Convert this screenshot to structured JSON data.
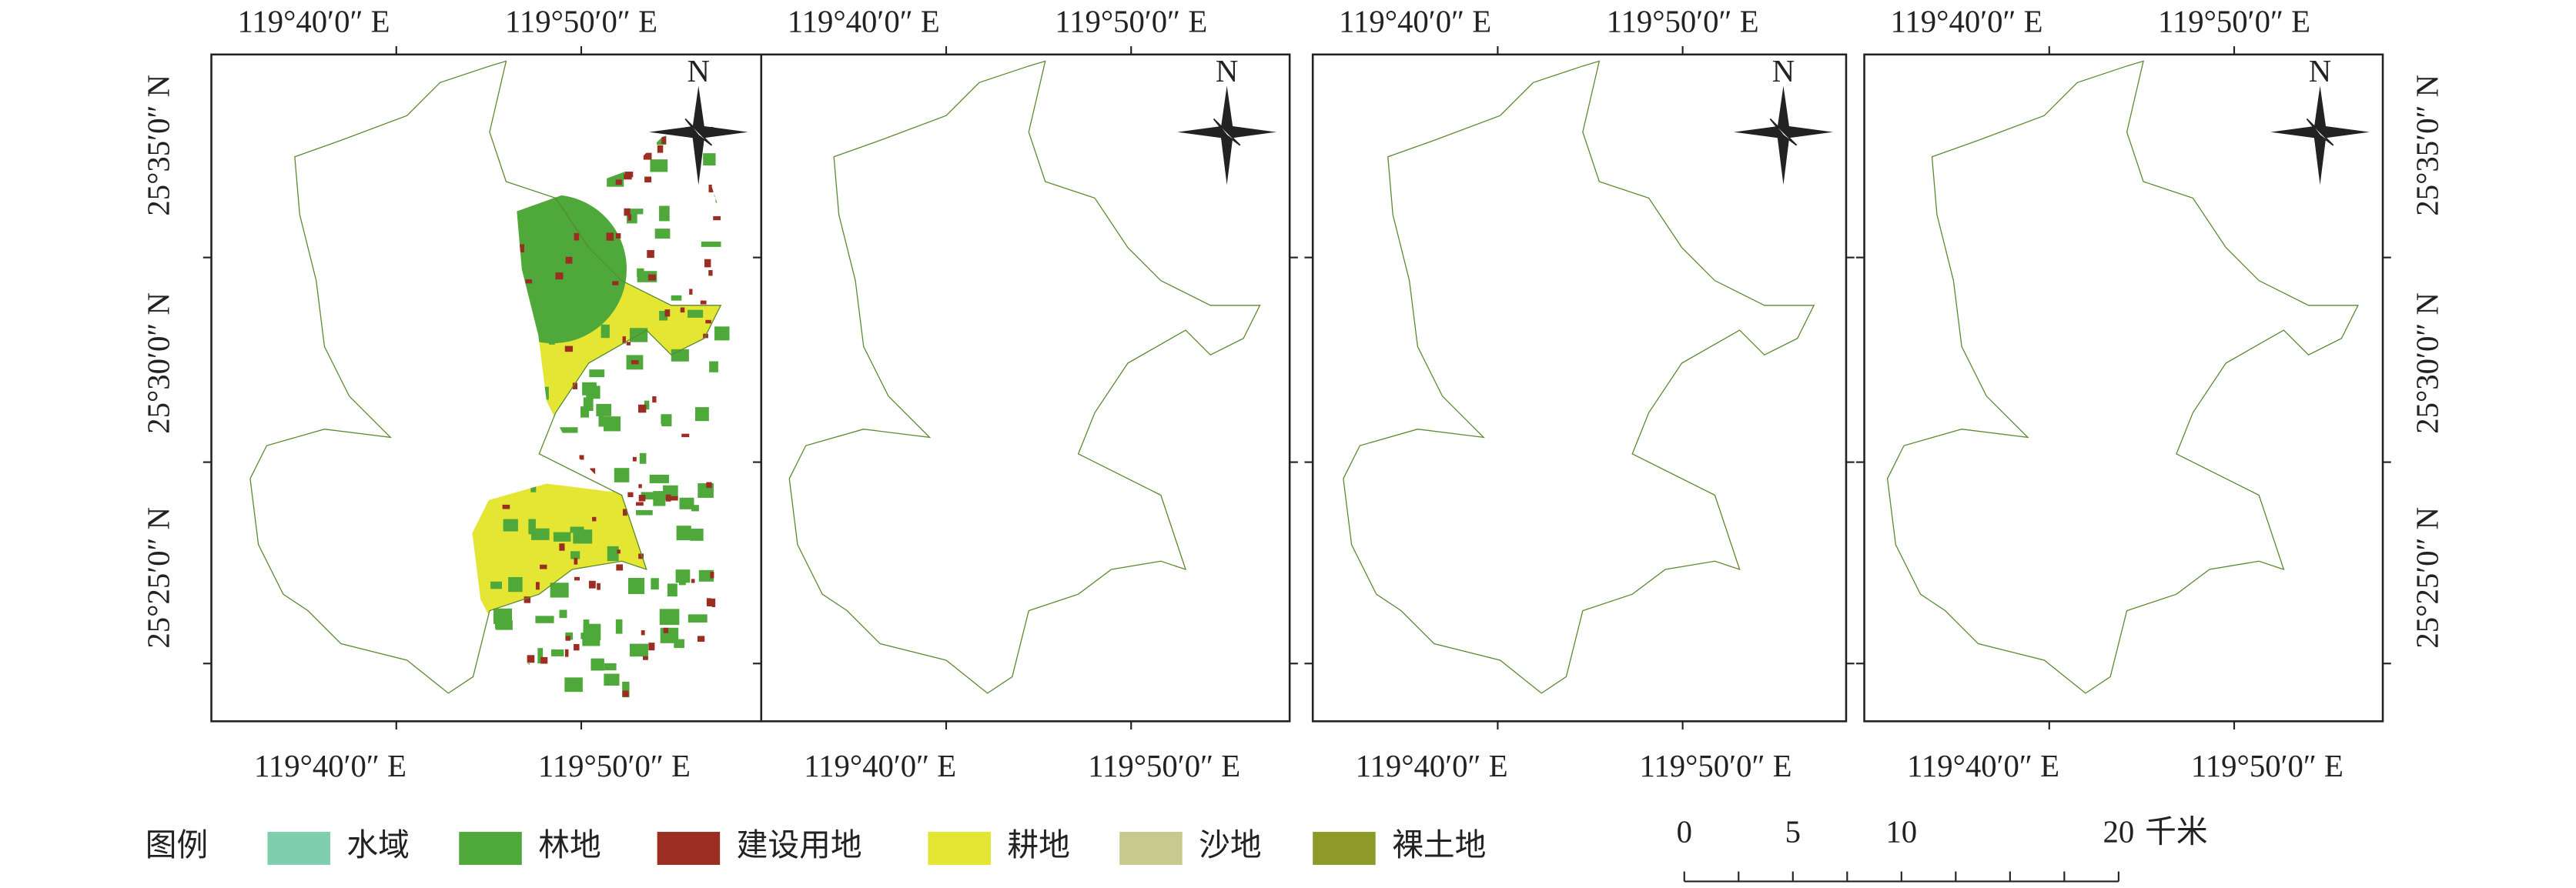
{
  "panels": [
    {
      "top": [
        "119°40′0″ E",
        "119°50′0″ E"
      ],
      "bottom": [
        "119°40′0″ E",
        "119°50′0″ E"
      ],
      "left": [
        "25°35′0″ N",
        "25°30′0″ N",
        "25°25′0″ N"
      ]
    },
    {
      "top": [
        "119°40′0″ E",
        "119°50′0″ E"
      ],
      "bottom": [
        "119°40′0″ E",
        "119°50′0″ E"
      ]
    },
    {
      "top": [
        "119°40′0″ E",
        "119°50′0″ E"
      ],
      "bottom": [
        "119°40′0″ E",
        "119°50′0″ E"
      ]
    },
    {
      "top": [
        "119°40′0″ E",
        "119°50′0″ E"
      ],
      "bottom": [
        "119°40′0″ E",
        "119°50′0″ E"
      ],
      "right": [
        "25°35′0″ N",
        "25°30′0″ N",
        "25°25′0″ N"
      ]
    }
  ],
  "north_label": "N",
  "legend": {
    "title": "图例",
    "items": [
      {
        "label": "水域",
        "color": "#7fcfae"
      },
      {
        "label": "林地",
        "color": "#4ea83a"
      },
      {
        "label": "建设用地",
        "color": "#9b2d22"
      },
      {
        "label": "耕地",
        "color": "#e4e633"
      },
      {
        "label": "沙地",
        "color": "#c7c98f"
      },
      {
        "label": "裸土地",
        "color": "#8e9a28"
      }
    ]
  },
  "scale_bar": {
    "ticks": [
      0,
      5,
      10,
      20
    ],
    "unit": "千米"
  }
}
